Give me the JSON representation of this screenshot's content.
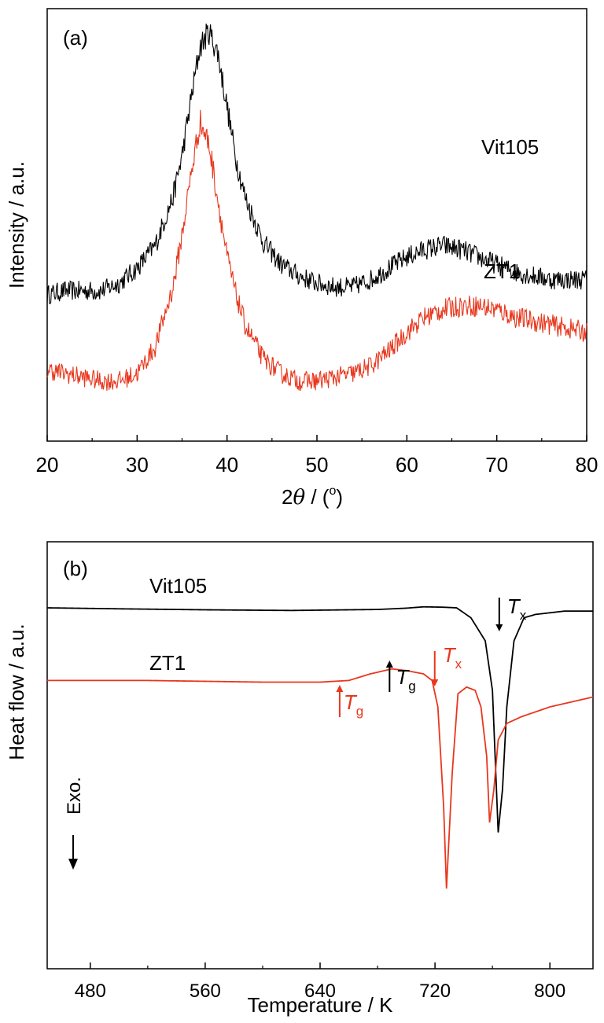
{
  "chart_data": [
    {
      "panel": "(a)",
      "type": "line",
      "xlabel_pre": "2",
      "xlabel_theta": "θ",
      "xlabel_post": " / (",
      "xlabel_sup": "o",
      "xlabel_close": ")",
      "ylabel": "Intensity / a.u.",
      "xlim": [
        20,
        80
      ],
      "xticks": [
        "20",
        "30",
        "40",
        "50",
        "60",
        "70",
        "80"
      ],
      "yticks_visible": false,
      "series": [
        {
          "name": "Vit105",
          "color": "#000000",
          "x": [
            20,
            22,
            24,
            26,
            28,
            30,
            32,
            34,
            35,
            36,
            37,
            38,
            39,
            40,
            41,
            42,
            44,
            46,
            48,
            50,
            52,
            54,
            56,
            58,
            60,
            62,
            64,
            66,
            68,
            70,
            72,
            74,
            76,
            78,
            80
          ],
          "y": [
            0.3,
            0.31,
            0.31,
            0.31,
            0.33,
            0.37,
            0.43,
            0.56,
            0.67,
            0.82,
            0.96,
            1.0,
            0.94,
            0.8,
            0.66,
            0.56,
            0.44,
            0.38,
            0.35,
            0.33,
            0.32,
            0.32,
            0.34,
            0.37,
            0.4,
            0.42,
            0.43,
            0.42,
            0.4,
            0.38,
            0.36,
            0.35,
            0.34,
            0.34,
            0.34
          ]
        },
        {
          "name": "ZT1",
          "color": "#e8371d",
          "x": [
            20,
            22,
            24,
            26,
            28,
            30,
            32,
            34,
            35,
            36,
            37,
            38,
            39,
            40,
            41,
            42,
            44,
            46,
            48,
            50,
            52,
            54,
            56,
            58,
            60,
            62,
            64,
            66,
            68,
            70,
            72,
            74,
            76,
            78,
            80
          ],
          "y": [
            0.1,
            0.09,
            0.08,
            0.07,
            0.07,
            0.09,
            0.16,
            0.32,
            0.46,
            0.62,
            0.76,
            0.7,
            0.55,
            0.4,
            0.3,
            0.22,
            0.13,
            0.09,
            0.07,
            0.07,
            0.08,
            0.09,
            0.11,
            0.15,
            0.2,
            0.24,
            0.26,
            0.27,
            0.27,
            0.26,
            0.24,
            0.23,
            0.22,
            0.21,
            0.2
          ]
        }
      ]
    },
    {
      "panel": "(b)",
      "type": "line",
      "xlabel": "Temperature / K",
      "ylabel": "Heat flow / a.u.",
      "xlim": [
        450,
        830
      ],
      "xticks": [
        "480",
        "560",
        "640",
        "720",
        "800"
      ],
      "yticks_visible": false,
      "annotation_exo": "Exo.",
      "series": [
        {
          "name": "Vit105",
          "color": "#000000",
          "x": [
            450,
            500,
            560,
            620,
            660,
            680,
            700,
            712,
            725,
            735,
            745,
            755,
            760,
            764,
            767,
            770,
            775,
            782,
            790,
            800,
            810,
            830
          ],
          "y": [
            0.0,
            -0.003,
            -0.006,
            -0.008,
            -0.006,
            -0.005,
            -0.001,
            0.003,
            0.002,
            0.0,
            -0.03,
            -0.1,
            -0.25,
            -0.68,
            -0.55,
            -0.3,
            -0.1,
            -0.03,
            -0.02,
            -0.015,
            -0.01,
            -0.01
          ],
          "annotations": [
            {
              "label": "T",
              "sub": "g",
              "x": 690
            },
            {
              "label": "T",
              "sub": "x",
              "x": 762
            }
          ]
        },
        {
          "name": "ZT1",
          "color": "#e8371d",
          "x": [
            450,
            520,
            600,
            640,
            660,
            675,
            690,
            700,
            712,
            718,
            722,
            726,
            728,
            732,
            736,
            742,
            748,
            752,
            756,
            758,
            761,
            764,
            770,
            780,
            800,
            830
          ],
          "y": [
            -0.22,
            -0.22,
            -0.225,
            -0.225,
            -0.22,
            -0.2,
            -0.185,
            -0.19,
            -0.2,
            -0.22,
            -0.3,
            -0.6,
            -0.85,
            -0.5,
            -0.26,
            -0.24,
            -0.25,
            -0.3,
            -0.45,
            -0.65,
            -0.55,
            -0.4,
            -0.35,
            -0.33,
            -0.3,
            -0.27
          ],
          "annotations": [
            {
              "label": "T",
              "sub": "g",
              "x": 652
            },
            {
              "label": "T",
              "sub": "x",
              "x": 722
            }
          ]
        }
      ]
    }
  ]
}
